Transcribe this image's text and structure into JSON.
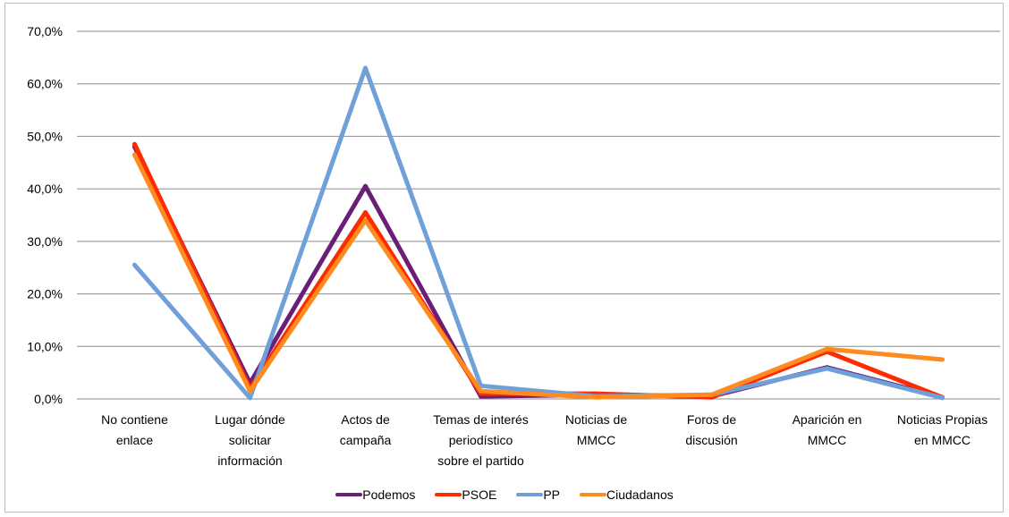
{
  "chart_data": {
    "type": "line",
    "title": "",
    "xlabel": "",
    "ylabel": "",
    "ylim": [
      0,
      70
    ],
    "yticks": [
      "0,0%",
      "10,0%",
      "20,0%",
      "30,0%",
      "40,0%",
      "50,0%",
      "60,0%",
      "70,0%"
    ],
    "grid": true,
    "legend_position": "bottom",
    "categories": [
      [
        "No contiene",
        "enlace"
      ],
      [
        "Lugar dónde",
        "solicitar",
        "información"
      ],
      [
        "Actos de",
        "campaña"
      ],
      [
        "Temas de interés",
        "periodístico",
        "sobre el partido"
      ],
      [
        "Noticias de",
        "MMCC"
      ],
      [
        "Foros de",
        "discusión"
      ],
      [
        "Aparición en",
        "MMCC"
      ],
      [
        "Noticias Propias",
        "en MMCC"
      ]
    ],
    "series": [
      {
        "name": "Podemos",
        "color": "#6b1e77",
        "values": [
          48.0,
          3.0,
          40.5,
          0.5,
          0.8,
          0.5,
          6.0,
          0.3
        ]
      },
      {
        "name": "PSOE",
        "color": "#ff2a00",
        "values": [
          48.5,
          2.0,
          35.5,
          1.0,
          1.0,
          0.3,
          9.0,
          0.3
        ]
      },
      {
        "name": "PP",
        "color": "#6fa0d8",
        "values": [
          25.5,
          0.2,
          63.0,
          2.5,
          0.5,
          0.8,
          5.8,
          0.2
        ]
      },
      {
        "name": "Ciudadanos",
        "color": "#ff8a1f",
        "values": [
          46.5,
          1.5,
          34.0,
          1.5,
          0.3,
          0.8,
          9.5,
          7.5
        ]
      }
    ]
  }
}
